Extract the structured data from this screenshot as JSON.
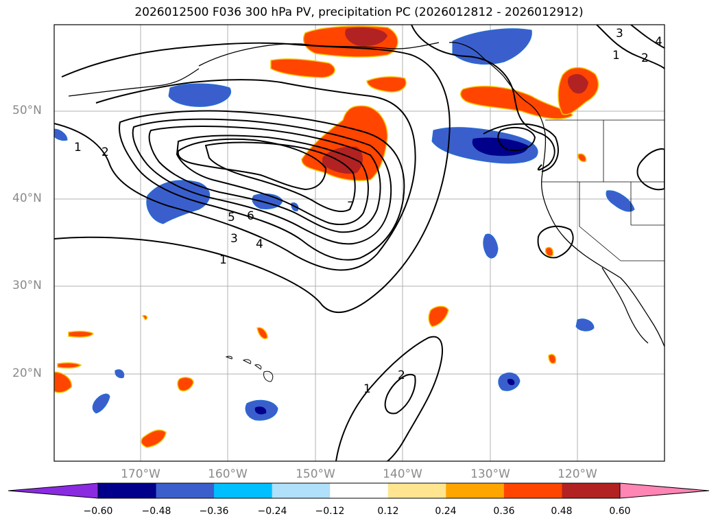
{
  "title": "2026012500 F036 300 hPa PV, precipitation PC (2026012812 - 2026012912)",
  "lat_labels": [
    "50°N",
    "40°N",
    "30°N",
    "20°N"
  ],
  "lon_labels": [
    "170°W",
    "160°W",
    "150°W",
    "140°W",
    "130°W",
    "120°W"
  ],
  "colorbar": {
    "ticks": [
      "−0.60",
      "−0.48",
      "−0.36",
      "−0.24",
      "−0.12",
      "0.12",
      "0.24",
      "0.36",
      "0.48",
      "0.60"
    ],
    "colors": [
      "#8a2be2",
      "#00008b",
      "#3a5fcd",
      "#00bfff",
      "#b0e0fa",
      "#ffffff",
      "#ffe58f",
      "#ffa500",
      "#ff4500",
      "#b22222",
      "#ff85b5"
    ]
  },
  "contour_labels": [
    "1",
    "2",
    "5",
    "6",
    "3",
    "4",
    "1",
    "7",
    "1",
    "2",
    "3",
    "1",
    "2",
    "4"
  ]
}
